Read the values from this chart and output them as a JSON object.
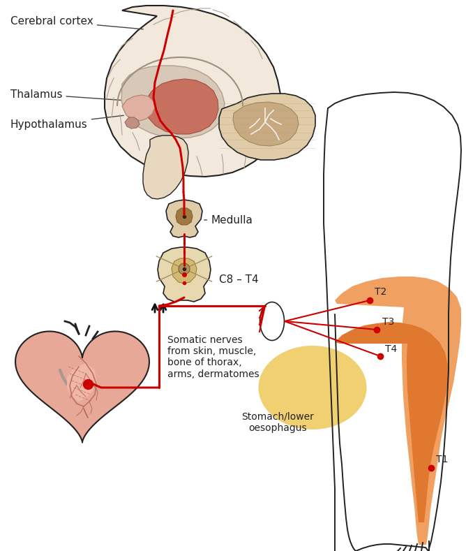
{
  "bg_color": "#ffffff",
  "label_color": "#222222",
  "nerve_color": "#cc0000",
  "body_outline_color": "#222222",
  "brain_outer": "#f2e8dc",
  "brain_inner_fill": "#e8d8c8",
  "brain_gray_matter": "#c8b8a8",
  "thalamus_fill": "#c87060",
  "thalamus_outer": "#d8b8a8",
  "hypothalamus_fill": "#e8c0b0",
  "brainstem_fill": "#e8d8c8",
  "cerebellum_fill": "#e0cca8",
  "cerebellum_inner": "#c8aa80",
  "medulla_outer": "#e0cca8",
  "medulla_inner": "#a07840",
  "spine_outer": "#e8d8b0",
  "spine_inner": "#b09060",
  "heart_fill": "#e8a898",
  "heart_vessel": "#d08878",
  "orange_light": "#f0a060",
  "orange_dark": "#e07830",
  "yellow_fill": "#f0d070",
  "labels": {
    "cerebral_cortex": "Cerebral cortex",
    "thalamus": "Thalamus",
    "hypothalamus": "Hypothalamus",
    "medulla": "Medulla",
    "c8t4": "C8 – T4",
    "somatic": "Somatic nerves\nfrom skin, muscle,\nbone of thorax,\narms, dermatomes",
    "stomach": "Stomach/lower\noesophagus",
    "t1": "T1",
    "t2": "T2",
    "t3": "T3",
    "t4": "T4"
  },
  "figsize": [
    6.68,
    7.89
  ],
  "dpi": 100
}
